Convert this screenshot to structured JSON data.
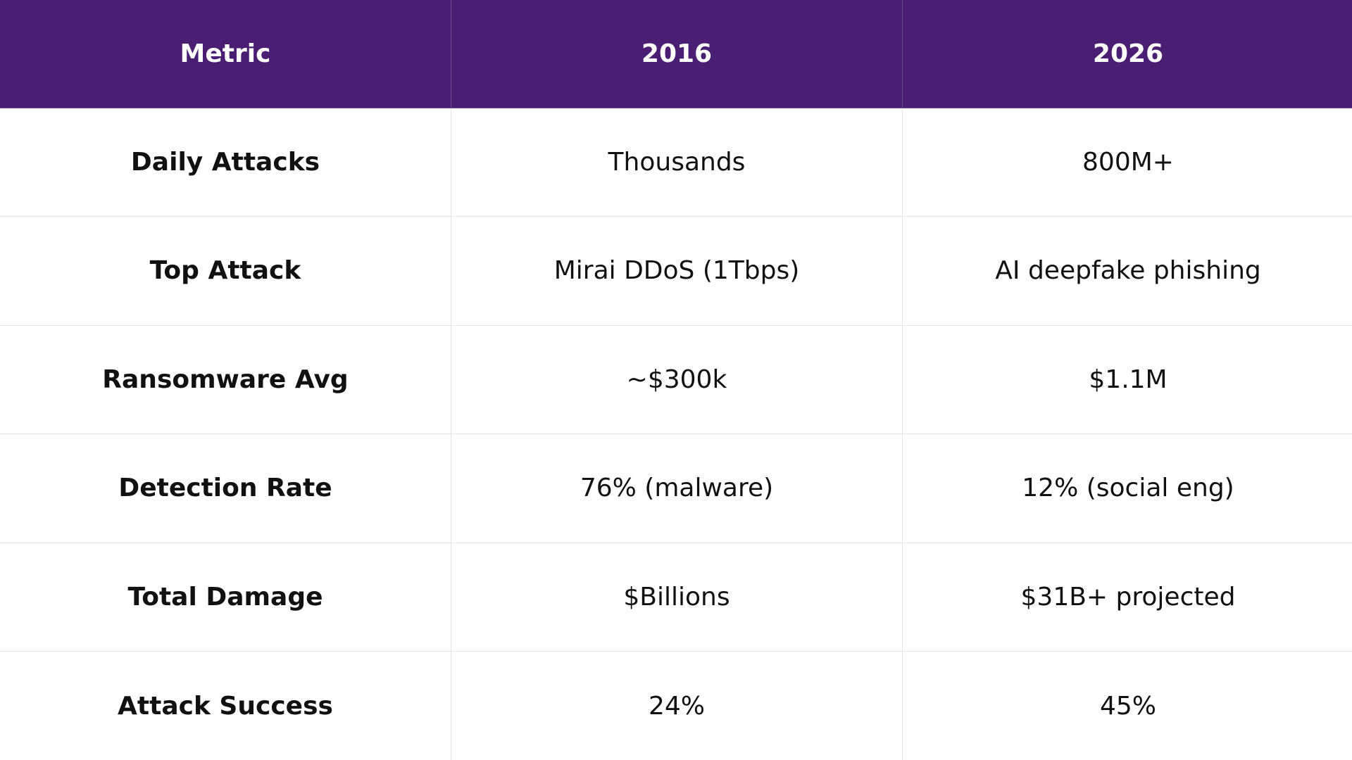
{
  "table": {
    "header": [
      "Metric",
      "2016",
      "2026"
    ],
    "rows": [
      [
        "Daily Attacks",
        "Thousands",
        "800M+"
      ],
      [
        "Top Attack",
        "Mirai DDoS (1Tbps)",
        "AI deepfake phishing"
      ],
      [
        "Ransomware Avg",
        "~$300k",
        "$1.1M"
      ],
      [
        "Detection Rate",
        "76% (malware)",
        "12% (social eng)"
      ],
      [
        "Total Damage",
        "$Billions",
        "$31B+ projected"
      ],
      [
        "Attack Success",
        "24%",
        "45%"
      ]
    ]
  }
}
